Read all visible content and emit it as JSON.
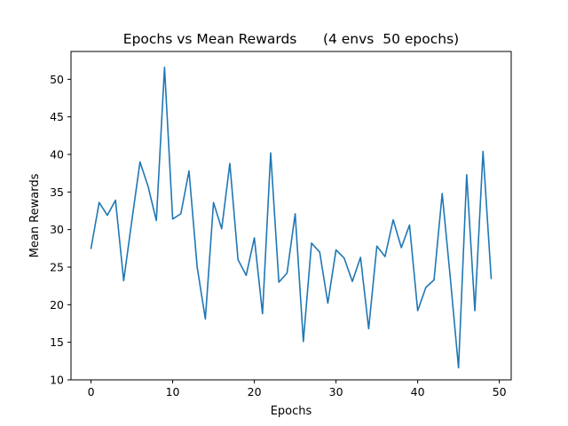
{
  "chart_data": {
    "type": "line",
    "title": "Epochs vs Mean Rewards      (4 envs  50 epochs)",
    "xlabel": "Epochs",
    "ylabel": "Mean Rewards",
    "xlim": [
      -2.45,
      51.45
    ],
    "ylim": [
      10.0,
      53.7
    ],
    "xticks": [
      0,
      10,
      20,
      30,
      40,
      50
    ],
    "yticks": [
      10,
      15,
      20,
      25,
      30,
      35,
      40,
      45,
      50
    ],
    "grid": false,
    "line_color": "#1f77b4",
    "series": [
      {
        "x": [
          0,
          1,
          2,
          3,
          4,
          5,
          6,
          7,
          8,
          9,
          10,
          11,
          12,
          13,
          14,
          15,
          16,
          17,
          18,
          19,
          20,
          21,
          22,
          23,
          24,
          25,
          26,
          27,
          28,
          29,
          30,
          31,
          32,
          33,
          34,
          35,
          36,
          37,
          38,
          39,
          40,
          41,
          42,
          43,
          44,
          45,
          46,
          47,
          48,
          49
        ],
        "values": [
          27.5,
          33.6,
          31.9,
          33.9,
          23.2,
          31.2,
          39.0,
          35.7,
          31.2,
          51.6,
          31.4,
          32.1,
          37.8,
          25.0,
          18.1,
          33.6,
          30.1,
          38.8,
          26.0,
          23.9,
          28.9,
          18.8,
          40.2,
          23.0,
          24.2,
          32.1,
          15.1,
          28.2,
          27.0,
          20.2,
          27.3,
          26.2,
          23.1,
          26.3,
          16.8,
          27.8,
          26.4,
          31.3,
          27.6,
          30.6,
          19.2,
          22.3,
          23.3,
          34.8,
          23.5,
          11.6,
          37.3,
          19.2,
          40.4,
          23.5
        ]
      }
    ]
  }
}
